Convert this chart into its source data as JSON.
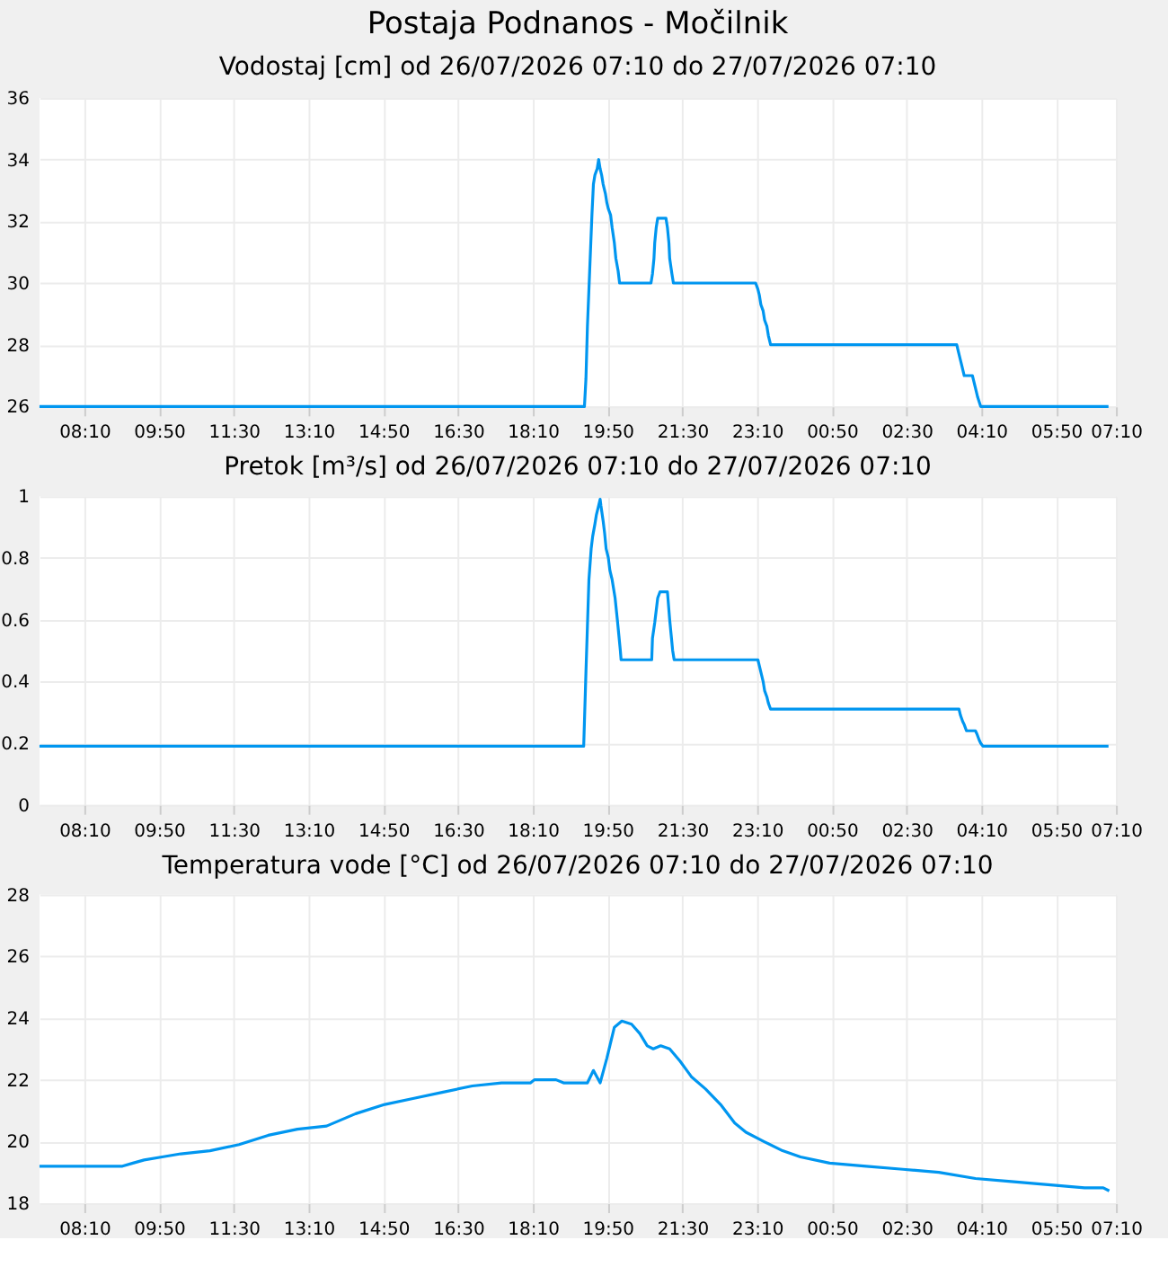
{
  "chart_data": [
    {
      "type": "line",
      "title": "Postaja Podnanos - Močilnik",
      "subtitle": "Vodostaj [cm] od 26/07/2026 07:10 do 27/07/2026 07:10",
      "grid": true,
      "marker": "none",
      "xlim": [
        "2026-07-26T07:10",
        "2026-07-27T07:10"
      ],
      "xticks": [
        {
          "value": "2026-07-26T08:10",
          "label": "08:10"
        },
        {
          "value": "2026-07-26T09:50",
          "label": "09:50"
        },
        {
          "value": "2026-07-26T11:30",
          "label": "11:30"
        },
        {
          "value": "2026-07-26T13:10",
          "label": "13:10"
        },
        {
          "value": "2026-07-26T14:50",
          "label": "14:50"
        },
        {
          "value": "2026-07-26T16:30",
          "label": "16:30"
        },
        {
          "value": "2026-07-26T18:10",
          "label": "18:10"
        },
        {
          "value": "2026-07-26T19:50",
          "label": "19:50"
        },
        {
          "value": "2026-07-26T21:30",
          "label": "21:30"
        },
        {
          "value": "2026-07-26T23:10",
          "label": "23:10"
        },
        {
          "value": "2026-07-27T00:50",
          "label": "00:50"
        },
        {
          "value": "2026-07-27T02:30",
          "label": "02:30"
        },
        {
          "value": "2026-07-27T04:10",
          "label": "04:10"
        },
        {
          "value": "2026-07-27T05:50",
          "label": "05:50"
        },
        {
          "value": "2026-07-27T07:10",
          "label": "07:10"
        }
      ],
      "ylim": [
        26,
        36
      ],
      "yticks": [
        26,
        28,
        30,
        32,
        34,
        36
      ],
      "x": [
        "2026-07-26T07:10",
        "2026-07-26T19:19",
        "2026-07-26T19:21",
        "2026-07-26T19:23",
        "2026-07-26T19:26",
        "2026-07-26T19:29",
        "2026-07-26T19:31",
        "2026-07-26T19:33",
        "2026-07-26T19:36",
        "2026-07-26T19:38",
        "2026-07-26T19:40",
        "2026-07-26T19:42",
        "2026-07-26T19:44",
        "2026-07-26T19:47",
        "2026-07-26T19:49",
        "2026-07-26T19:51",
        "2026-07-26T19:54",
        "2026-07-26T19:56",
        "2026-07-26T19:59",
        "2026-07-26T20:01",
        "2026-07-26T20:04",
        "2026-07-26T20:06",
        "2026-07-26T20:48",
        "2026-07-26T20:50",
        "2026-07-26T20:52",
        "2026-07-26T20:53",
        "2026-07-26T20:55",
        "2026-07-26T20:57",
        "2026-07-26T21:08",
        "2026-07-26T21:10",
        "2026-07-26T21:12",
        "2026-07-26T21:13",
        "2026-07-26T21:16",
        "2026-07-26T21:18",
        "2026-07-26T23:08",
        "2026-07-26T23:11",
        "2026-07-26T23:13",
        "2026-07-26T23:15",
        "2026-07-26T23:18",
        "2026-07-26T23:20",
        "2026-07-26T23:23",
        "2026-07-26T23:25",
        "2026-07-26T23:28",
        "2026-07-27T03:37",
        "2026-07-27T03:39",
        "2026-07-27T03:42",
        "2026-07-27T03:44",
        "2026-07-27T03:47",
        "2026-07-27T03:58",
        "2026-07-27T04:00",
        "2026-07-27T04:03",
        "2026-07-27T04:05",
        "2026-07-27T04:09",
        "2026-07-27T07:00"
      ],
      "series": [
        {
          "color": "#0096f0",
          "values": [
            26.0,
            26.0,
            26.9,
            28.6,
            30.4,
            32.2,
            33.2,
            33.5,
            33.7,
            34.0,
            33.7,
            33.5,
            33.2,
            32.9,
            32.6,
            32.4,
            32.2,
            31.8,
            31.3,
            30.8,
            30.4,
            30.0,
            30.0,
            30.3,
            30.8,
            31.3,
            31.8,
            32.1,
            32.1,
            31.8,
            31.3,
            30.8,
            30.3,
            30.0,
            30.0,
            29.8,
            29.6,
            29.3,
            29.1,
            28.8,
            28.6,
            28.3,
            28.0,
            28.0,
            27.8,
            27.5,
            27.3,
            27.0,
            27.0,
            26.8,
            26.5,
            26.3,
            26.0,
            26.0
          ]
        }
      ]
    },
    {
      "type": "line",
      "title": "Pretok [m³/s] od 26/07/2026 07:10 do 27/07/2026 07:10",
      "grid": true,
      "marker": "none",
      "xlim": [
        "2026-07-26T07:10",
        "2026-07-27T07:10"
      ],
      "xticks": [
        {
          "value": "2026-07-26T08:10",
          "label": "08:10"
        },
        {
          "value": "2026-07-26T09:50",
          "label": "09:50"
        },
        {
          "value": "2026-07-26T11:30",
          "label": "11:30"
        },
        {
          "value": "2026-07-26T13:10",
          "label": "13:10"
        },
        {
          "value": "2026-07-26T14:50",
          "label": "14:50"
        },
        {
          "value": "2026-07-26T16:30",
          "label": "16:30"
        },
        {
          "value": "2026-07-26T18:10",
          "label": "18:10"
        },
        {
          "value": "2026-07-26T19:50",
          "label": "19:50"
        },
        {
          "value": "2026-07-26T21:30",
          "label": "21:30"
        },
        {
          "value": "2026-07-26T23:10",
          "label": "23:10"
        },
        {
          "value": "2026-07-27T00:50",
          "label": "00:50"
        },
        {
          "value": "2026-07-27T02:30",
          "label": "02:30"
        },
        {
          "value": "2026-07-27T04:10",
          "label": "04:10"
        },
        {
          "value": "2026-07-27T05:50",
          "label": "05:50"
        },
        {
          "value": "2026-07-27T07:10",
          "label": "07:10"
        }
      ],
      "ylim": [
        0,
        1
      ],
      "yticks": [
        0,
        0.2,
        0.4,
        0.6,
        0.8,
        1
      ],
      "x": [
        "2026-07-26T07:10",
        "2026-07-26T19:18",
        "2026-07-26T19:19",
        "2026-07-26T19:21",
        "2026-07-26T19:23",
        "2026-07-26T19:25",
        "2026-07-26T19:28",
        "2026-07-26T19:30",
        "2026-07-26T19:33",
        "2026-07-26T19:35",
        "2026-07-26T19:38",
        "2026-07-26T19:40",
        "2026-07-26T19:41",
        "2026-07-26T19:44",
        "2026-07-26T19:46",
        "2026-07-26T19:48",
        "2026-07-26T19:51",
        "2026-07-26T19:53",
        "2026-07-26T19:56",
        "2026-07-26T19:58",
        "2026-07-26T20:00",
        "2026-07-26T20:03",
        "2026-07-26T20:05",
        "2026-07-26T20:07",
        "2026-07-26T20:08",
        "2026-07-26T20:49",
        "2026-07-26T20:50",
        "2026-07-26T20:53",
        "2026-07-26T20:55",
        "2026-07-26T20:57",
        "2026-07-26T21:00",
        "2026-07-26T21:10",
        "2026-07-26T21:11",
        "2026-07-26T21:13",
        "2026-07-26T21:15",
        "2026-07-26T21:17",
        "2026-07-26T21:19",
        "2026-07-26T23:11",
        "2026-07-26T23:13",
        "2026-07-26T23:16",
        "2026-07-26T23:18",
        "2026-07-26T23:20",
        "2026-07-26T23:23",
        "2026-07-26T23:25",
        "2026-07-26T23:28",
        "2026-07-26T23:30",
        "2026-07-27T03:40",
        "2026-07-27T03:42",
        "2026-07-27T03:45",
        "2026-07-27T03:47",
        "2026-07-27T03:50",
        "2026-07-27T04:02",
        "2026-07-27T04:04",
        "2026-07-27T04:07",
        "2026-07-27T04:09",
        "2026-07-27T04:12",
        "2026-07-27T07:00"
      ],
      "series": [
        {
          "color": "#0096f0",
          "values": [
            0.19,
            0.19,
            0.27,
            0.43,
            0.58,
            0.73,
            0.83,
            0.87,
            0.91,
            0.94,
            0.97,
            0.99,
            0.97,
            0.92,
            0.88,
            0.83,
            0.8,
            0.76,
            0.73,
            0.7,
            0.67,
            0.6,
            0.55,
            0.5,
            0.47,
            0.47,
            0.54,
            0.59,
            0.63,
            0.67,
            0.69,
            0.69,
            0.66,
            0.6,
            0.55,
            0.5,
            0.47,
            0.47,
            0.45,
            0.42,
            0.4,
            0.37,
            0.35,
            0.33,
            0.31,
            0.31,
            0.31,
            0.29,
            0.27,
            0.26,
            0.24,
            0.24,
            0.23,
            0.21,
            0.2,
            0.19,
            0.19
          ]
        }
      ]
    },
    {
      "type": "line",
      "title": "Temperatura vode [°C] od 26/07/2026 07:10 do 27/07/2026 07:10",
      "grid": true,
      "marker": "none",
      "xlim": [
        "2026-07-26T07:10",
        "2026-07-27T07:10"
      ],
      "xticks": [
        {
          "value": "2026-07-26T08:10",
          "label": "08:10"
        },
        {
          "value": "2026-07-26T09:50",
          "label": "09:50"
        },
        {
          "value": "2026-07-26T11:30",
          "label": "11:30"
        },
        {
          "value": "2026-07-26T13:10",
          "label": "13:10"
        },
        {
          "value": "2026-07-26T14:50",
          "label": "14:50"
        },
        {
          "value": "2026-07-26T16:30",
          "label": "16:30"
        },
        {
          "value": "2026-07-26T18:10",
          "label": "18:10"
        },
        {
          "value": "2026-07-26T19:50",
          "label": "19:50"
        },
        {
          "value": "2026-07-26T21:30",
          "label": "21:30"
        },
        {
          "value": "2026-07-26T23:10",
          "label": "23:10"
        },
        {
          "value": "2026-07-27T00:50",
          "label": "00:50"
        },
        {
          "value": "2026-07-27T02:30",
          "label": "02:30"
        },
        {
          "value": "2026-07-27T04:10",
          "label": "04:10"
        },
        {
          "value": "2026-07-27T05:50",
          "label": "05:50"
        },
        {
          "value": "2026-07-27T07:10",
          "label": "07:10"
        }
      ],
      "ylim": [
        18,
        28
      ],
      "yticks": [
        18,
        20,
        22,
        24,
        26,
        28
      ],
      "x": [
        "2026-07-26T07:10",
        "2026-07-26T09:01",
        "2026-07-26T09:15",
        "2026-07-26T09:30",
        "2026-07-26T09:54",
        "2026-07-26T10:19",
        "2026-07-26T10:58",
        "2026-07-26T11:37",
        "2026-07-26T12:16",
        "2026-07-26T12:55",
        "2026-07-26T13:34",
        "2026-07-26T14:13",
        "2026-07-26T14:52",
        "2026-07-26T15:31",
        "2026-07-26T16:10",
        "2026-07-26T16:49",
        "2026-07-26T17:28",
        "2026-07-26T18:07",
        "2026-07-26T18:12",
        "2026-07-26T18:41",
        "2026-07-26T18:51",
        "2026-07-26T19:23",
        "2026-07-26T19:31",
        "2026-07-26T19:40",
        "2026-07-26T19:49",
        "2026-07-26T19:59",
        "2026-07-26T20:09",
        "2026-07-26T20:22",
        "2026-07-26T20:33",
        "2026-07-26T20:43",
        "2026-07-26T20:51",
        "2026-07-26T21:01",
        "2026-07-26T21:13",
        "2026-07-26T21:27",
        "2026-07-26T21:42",
        "2026-07-26T22:01",
        "2026-07-26T22:21",
        "2026-07-26T22:40",
        "2026-07-26T22:55",
        "2026-07-26T23:19",
        "2026-07-26T23:44",
        "2026-07-27T00:08",
        "2026-07-27T00:47",
        "2026-07-27T01:36",
        "2026-07-27T02:25",
        "2026-07-27T03:13",
        "2026-07-27T04:02",
        "2026-07-27T04:50",
        "2026-07-27T05:39",
        "2026-07-27T06:28",
        "2026-07-27T06:53",
        "2026-07-27T07:01"
      ],
      "series": [
        {
          "color": "#0096f0",
          "values": [
            19.2,
            19.2,
            19.3,
            19.4,
            19.5,
            19.6,
            19.7,
            19.9,
            20.2,
            20.4,
            20.5,
            20.9,
            21.2,
            21.4,
            21.6,
            21.8,
            21.9,
            21.9,
            22.0,
            22.0,
            21.9,
            21.9,
            22.3,
            21.9,
            22.7,
            23.7,
            23.9,
            23.8,
            23.5,
            23.1,
            23.0,
            23.1,
            23.0,
            22.6,
            22.1,
            21.7,
            21.2,
            20.6,
            20.3,
            20.0,
            19.7,
            19.5,
            19.3,
            19.2,
            19.1,
            19.0,
            18.8,
            18.7,
            18.6,
            18.5,
            18.5,
            18.4
          ]
        }
      ]
    }
  ]
}
